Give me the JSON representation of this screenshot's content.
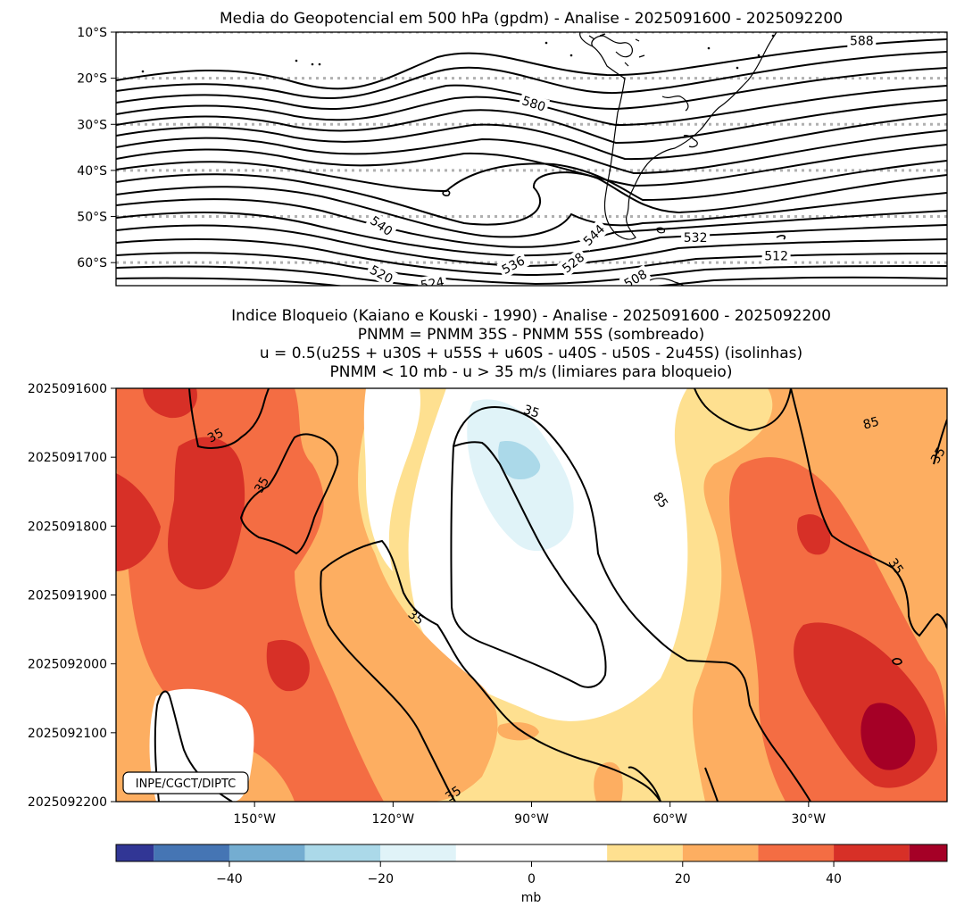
{
  "chart_data": [
    {
      "type": "contour",
      "title": "Media do Geopotencial em 500 hPa (gpdm) - Analise - 2025091600 - 2025092200",
      "ylim": [
        -65,
        -10
      ],
      "yticks": [
        {
          "value": -10,
          "label": "10°S"
        },
        {
          "value": -20,
          "label": "20°S"
        },
        {
          "value": -30,
          "label": "30°S"
        },
        {
          "value": -40,
          "label": "40°S"
        },
        {
          "value": -50,
          "label": "50°S"
        },
        {
          "value": -60,
          "label": "60°S"
        }
      ],
      "xlim": [
        -180,
        0
      ],
      "contour_interval": 4,
      "contour_labels": [
        {
          "text": "588",
          "lon": -18.5,
          "lat": -11.8,
          "angle": 0
        },
        {
          "text": "580",
          "lon": -89.5,
          "lat": -25.5,
          "angle": 18
        },
        {
          "text": "540",
          "lon": -122.5,
          "lat": -52.0,
          "angle": 35
        },
        {
          "text": "520",
          "lon": -122.5,
          "lat": -62.5,
          "angle": 28
        },
        {
          "text": "544",
          "lon": -76.5,
          "lat": -54.0,
          "angle": -45
        },
        {
          "text": "536",
          "lon": -94.0,
          "lat": -60.5,
          "angle": -28
        },
        {
          "text": "528",
          "lon": -81.0,
          "lat": -60.0,
          "angle": -38
        },
        {
          "text": "524",
          "lon": -111.5,
          "lat": -64.5,
          "angle": -10
        },
        {
          "text": "532",
          "lon": -54.5,
          "lat": -54.5,
          "angle": 0
        },
        {
          "text": "512",
          "lon": -37.0,
          "lat": -58.5,
          "angle": 0
        },
        {
          "text": "508",
          "lon": -67.5,
          "lat": -63.5,
          "angle": -30
        }
      ]
    },
    {
      "type": "filled_contour",
      "title_lines": [
        "Indice Bloqueio (Kaiano e Kouski - 1990) - Analise - 2025091600 - 2025092200",
        "PNMM = PNMM 35S - PNMM 55S (sombreado)",
        "u = 0.5(u25S + u30S + u55S + u60S - u40S - u50S - 2u45S) (isolinhas)",
        "PNMM < 10 mb - u > 35 m/s (limiares para bloqueio)"
      ],
      "xlim": [
        -180,
        0
      ],
      "xticks": [
        {
          "value": -150,
          "label": "150°W"
        },
        {
          "value": -120,
          "label": "120°W"
        },
        {
          "value": -90,
          "label": "90°W"
        },
        {
          "value": -60,
          "label": "60°W"
        },
        {
          "value": -30,
          "label": "30°W"
        }
      ],
      "yticks": [
        {
          "value": 0,
          "label": "2025091600"
        },
        {
          "value": 1,
          "label": "2025091700"
        },
        {
          "value": 2,
          "label": "2025091800"
        },
        {
          "value": 3,
          "label": "2025091900"
        },
        {
          "value": 4,
          "label": "2025092000"
        },
        {
          "value": 5,
          "label": "2025092100"
        },
        {
          "value": 6,
          "label": "2025092200"
        }
      ],
      "contour_labels": [
        {
          "text": "35",
          "lon": -158.5,
          "day": 0.68,
          "angle": -28
        },
        {
          "text": "35",
          "lon": -148.5,
          "day": 1.4,
          "angle": -60
        },
        {
          "text": "35",
          "lon": -90.0,
          "day": 0.33,
          "angle": 18
        },
        {
          "text": "85",
          "lon": -62.0,
          "day": 1.62,
          "angle": 55
        },
        {
          "text": "85",
          "lon": -16.5,
          "day": 0.5,
          "angle": -15
        },
        {
          "text": "35",
          "lon": -2.0,
          "day": 0.97,
          "angle": -60
        },
        {
          "text": "35",
          "lon": -11.0,
          "day": 2.58,
          "angle": 55
        },
        {
          "text": "35",
          "lon": -115.0,
          "day": 3.32,
          "angle": 38
        },
        {
          "text": "35",
          "lon": -107.0,
          "day": 5.88,
          "angle": -35
        }
      ],
      "credit": "INPE/CGCT/DIPTC",
      "colorbar": {
        "label": "mb",
        "bounds": [
          -55,
          -50,
          -40,
          -30,
          -20,
          -10,
          10,
          20,
          30,
          40,
          50,
          55
        ],
        "colors": [
          "#313695",
          "#4575b4",
          "#74add1",
          "#abd9e9",
          "#e0f3f8",
          "#ffffff",
          "#fee090",
          "#fdae61",
          "#f46d43",
          "#d73027",
          "#a50026"
        ],
        "ticks": [
          {
            "value": -40,
            "label": "−40"
          },
          {
            "value": -20,
            "label": "−20"
          },
          {
            "value": 0,
            "label": "0"
          },
          {
            "value": 20,
            "label": "20"
          },
          {
            "value": 40,
            "label": "40"
          }
        ]
      }
    }
  ]
}
